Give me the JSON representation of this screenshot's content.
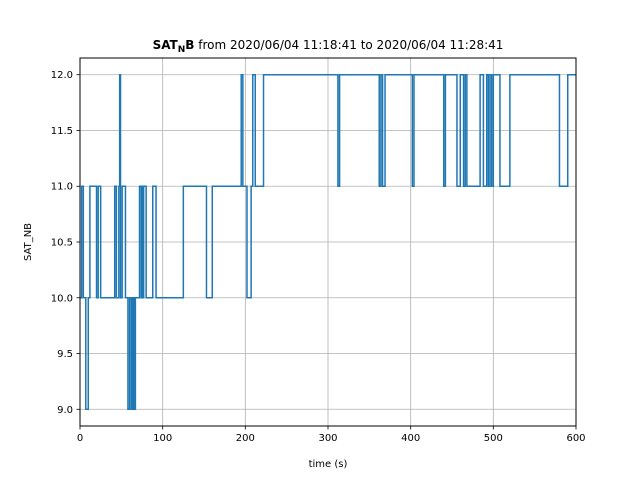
{
  "chart_data": {
    "type": "line",
    "title_main": "SAT",
    "title_sub": "N",
    "title_b": "B",
    "title_rest": " from 2020/06/04 11:18:41 to 2020/06/04 11:28:41",
    "xlabel": "time (s)",
    "ylabel": "SAT_NB",
    "xlim": [
      0,
      600
    ],
    "ylim": [
      8.85,
      12.15
    ],
    "xticks": [
      0,
      100,
      200,
      300,
      400,
      500,
      600
    ],
    "xtick_labels": [
      "0",
      "100",
      "200",
      "300",
      "400",
      "500",
      "600"
    ],
    "yticks": [
      9.0,
      9.5,
      10.0,
      10.5,
      11.0,
      11.5,
      12.0
    ],
    "ytick_labels": [
      "9.0",
      "9.5",
      "10.0",
      "10.5",
      "11.0",
      "11.5",
      "12.0"
    ],
    "grid": true,
    "line_color": "#1f77b4",
    "step": true,
    "series": [
      {
        "x": [
          0,
          2,
          4,
          7,
          10,
          12,
          20,
          22,
          25,
          42,
          44,
          47,
          48,
          49,
          51,
          55,
          58,
          60,
          62,
          63,
          64,
          65,
          66,
          67,
          72,
          74,
          75,
          76,
          77,
          80,
          88,
          92,
          94,
          96,
          125,
          153,
          158,
          160,
          195,
          197,
          202,
          207,
          209,
          212,
          222,
          312,
          314,
          316,
          362,
          364,
          366,
          369,
          372,
          402,
          404,
          440,
          442,
          456,
          460,
          464,
          466,
          468,
          482,
          484,
          488,
          492,
          494,
          496,
          498,
          500,
          502,
          508,
          520,
          580,
          582,
          590,
          600
        ],
        "y": [
          10,
          11,
          10,
          9,
          10,
          11,
          10,
          11,
          10,
          11,
          10,
          11,
          12,
          10,
          11,
          10,
          9,
          10,
          9,
          10,
          9,
          10,
          9,
          10,
          11,
          10,
          11,
          10,
          11,
          10,
          11,
          10,
          10,
          10,
          11,
          10,
          10,
          11,
          12,
          11,
          10,
          11,
          12,
          11,
          12,
          11,
          12,
          12,
          11,
          12,
          11,
          12,
          12,
          11,
          12,
          11,
          12,
          11,
          12,
          11,
          12,
          11,
          11,
          12,
          11,
          12,
          11,
          12,
          11,
          12,
          12,
          11,
          12,
          11,
          11,
          12,
          12
        ]
      }
    ]
  }
}
